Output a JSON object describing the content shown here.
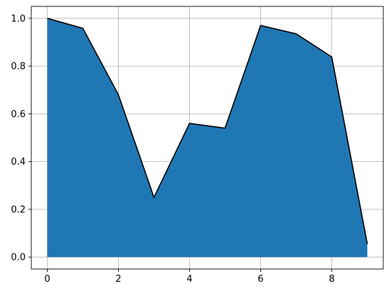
{
  "chart_data": {
    "type": "area",
    "title": "",
    "xlabel": "",
    "ylabel": "",
    "x": [
      0,
      1,
      2,
      3,
      4,
      5,
      6,
      7,
      8,
      9
    ],
    "series": [
      {
        "values": [
          1.0,
          0.958,
          0.68,
          0.25,
          0.56,
          0.54,
          0.97,
          0.935,
          0.838,
          0.055
        ],
        "fill_color": "#1f77b4",
        "line_color": "#000000"
      }
    ],
    "xlim": [
      -0.45,
      9.45
    ],
    "ylim": [
      -0.05,
      1.05
    ],
    "xticks": [
      0,
      2,
      4,
      6,
      8
    ],
    "xtick_labels": [
      "0",
      "2",
      "4",
      "6",
      "8"
    ],
    "yticks": [
      0.0,
      0.2,
      0.4,
      0.6,
      0.8,
      1.0
    ],
    "ytick_labels": [
      "0.0",
      "0.2",
      "0.4",
      "0.6",
      "0.8",
      "1.0"
    ],
    "grid": true,
    "grid_color": "#b0b0b0"
  }
}
